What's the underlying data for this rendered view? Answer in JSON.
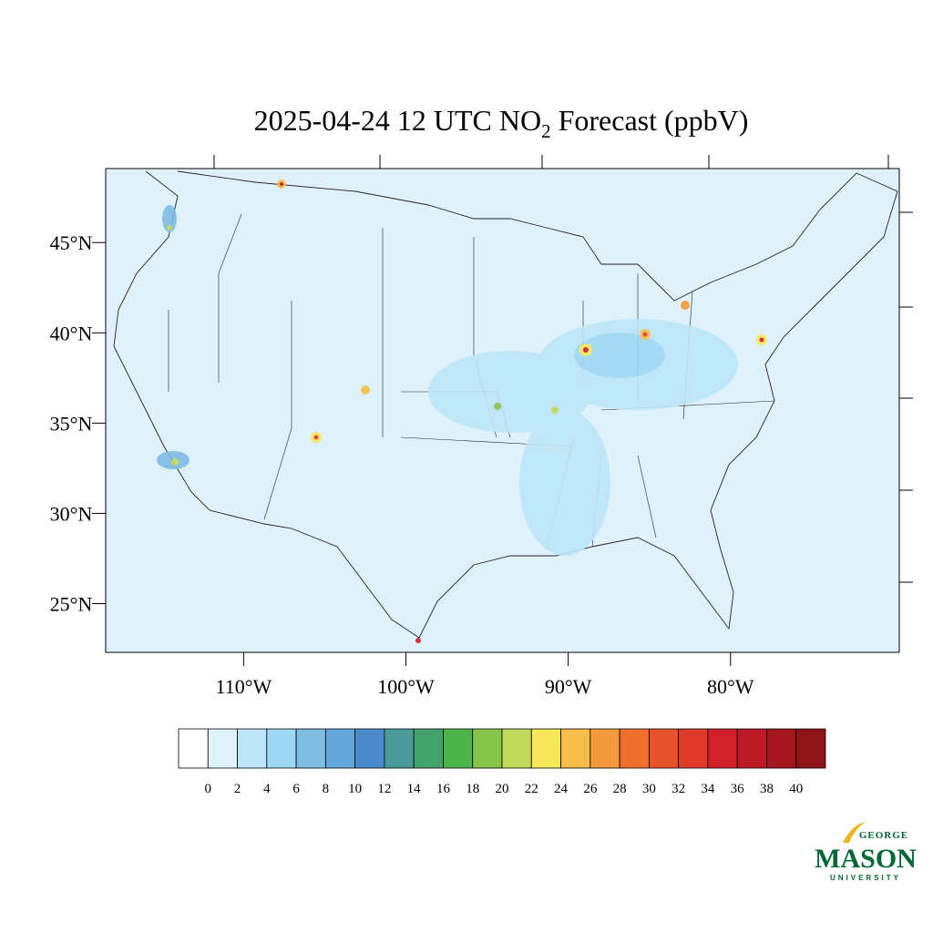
{
  "title": {
    "before": "2025-04-24 12 UTC NO",
    "sub": "2",
    "after": " Forecast (ppbV)"
  },
  "map": {
    "xlim": [
      -118.5,
      -69.6
    ],
    "ylim": [
      22.3,
      49.1
    ],
    "yticks": [
      {
        "value": 45,
        "label": "45°N"
      },
      {
        "value": 40,
        "label": "40°N"
      },
      {
        "value": 35,
        "label": "35°N"
      },
      {
        "value": 30,
        "label": "30°N"
      },
      {
        "value": 25,
        "label": "25°N"
      }
    ],
    "xticks": [
      {
        "value": -110,
        "label": "110°W"
      },
      {
        "value": -100,
        "label": "100°W"
      },
      {
        "value": -90,
        "label": "90°W"
      },
      {
        "value": -80,
        "label": "80°W"
      }
    ],
    "background": "#dff2fb"
  },
  "colorbar": {
    "levels": [
      0,
      2,
      4,
      6,
      8,
      10,
      12,
      14,
      16,
      18,
      20,
      22,
      24,
      26,
      28,
      30,
      32,
      34,
      36,
      38,
      40
    ],
    "colors": [
      "#ffffff",
      "#dff2fb",
      "#bde6f8",
      "#9ed8f4",
      "#7fbce3",
      "#64a6d9",
      "#4a8ccb",
      "#4a9a9a",
      "#44a36c",
      "#4cb34a",
      "#86c44a",
      "#c2d85a",
      "#f6e858",
      "#f6be48",
      "#f49a3c",
      "#f06e2e",
      "#e9532c",
      "#e03a2a",
      "#d2202a",
      "#bb1a24",
      "#a6161e",
      "#8e1418"
    ]
  },
  "logo": {
    "top": "GEORGE",
    "main": "MASON",
    "bottom": "UNIVERSITY"
  }
}
